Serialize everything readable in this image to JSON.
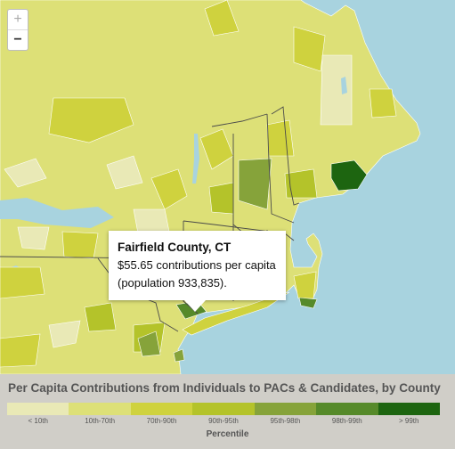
{
  "zoom": {
    "in_label": "+",
    "out_label": "−"
  },
  "tooltip": {
    "title": "Fairfield County, CT",
    "line1": "$55.65 contributions per capita",
    "line2": "(population 933,835)."
  },
  "legend": {
    "title": "Per Capita Contributions from Individuals to PACs & Candidates, by County",
    "axis_label": "Percentile",
    "classes": [
      {
        "label": "< 10th",
        "color": "#e9e9b6"
      },
      {
        "label": "10th-70th",
        "color": "#dde077"
      },
      {
        "label": "70th-90th",
        "color": "#cfd23e"
      },
      {
        "label": "90th-95th",
        "color": "#b4c32a"
      },
      {
        "label": "95th-98th",
        "color": "#86a33a"
      },
      {
        "label": "98th-99th",
        "color": "#568a2a"
      },
      {
        "label": "> 99th",
        "color": "#1d6510"
      }
    ]
  },
  "colors": {
    "water": "#a8d3df",
    "county_border": "#ffffff",
    "state_border": "#4a4a4a"
  },
  "icons": {
    "tooltip_pointer": "tooltip-pointer-icon"
  }
}
